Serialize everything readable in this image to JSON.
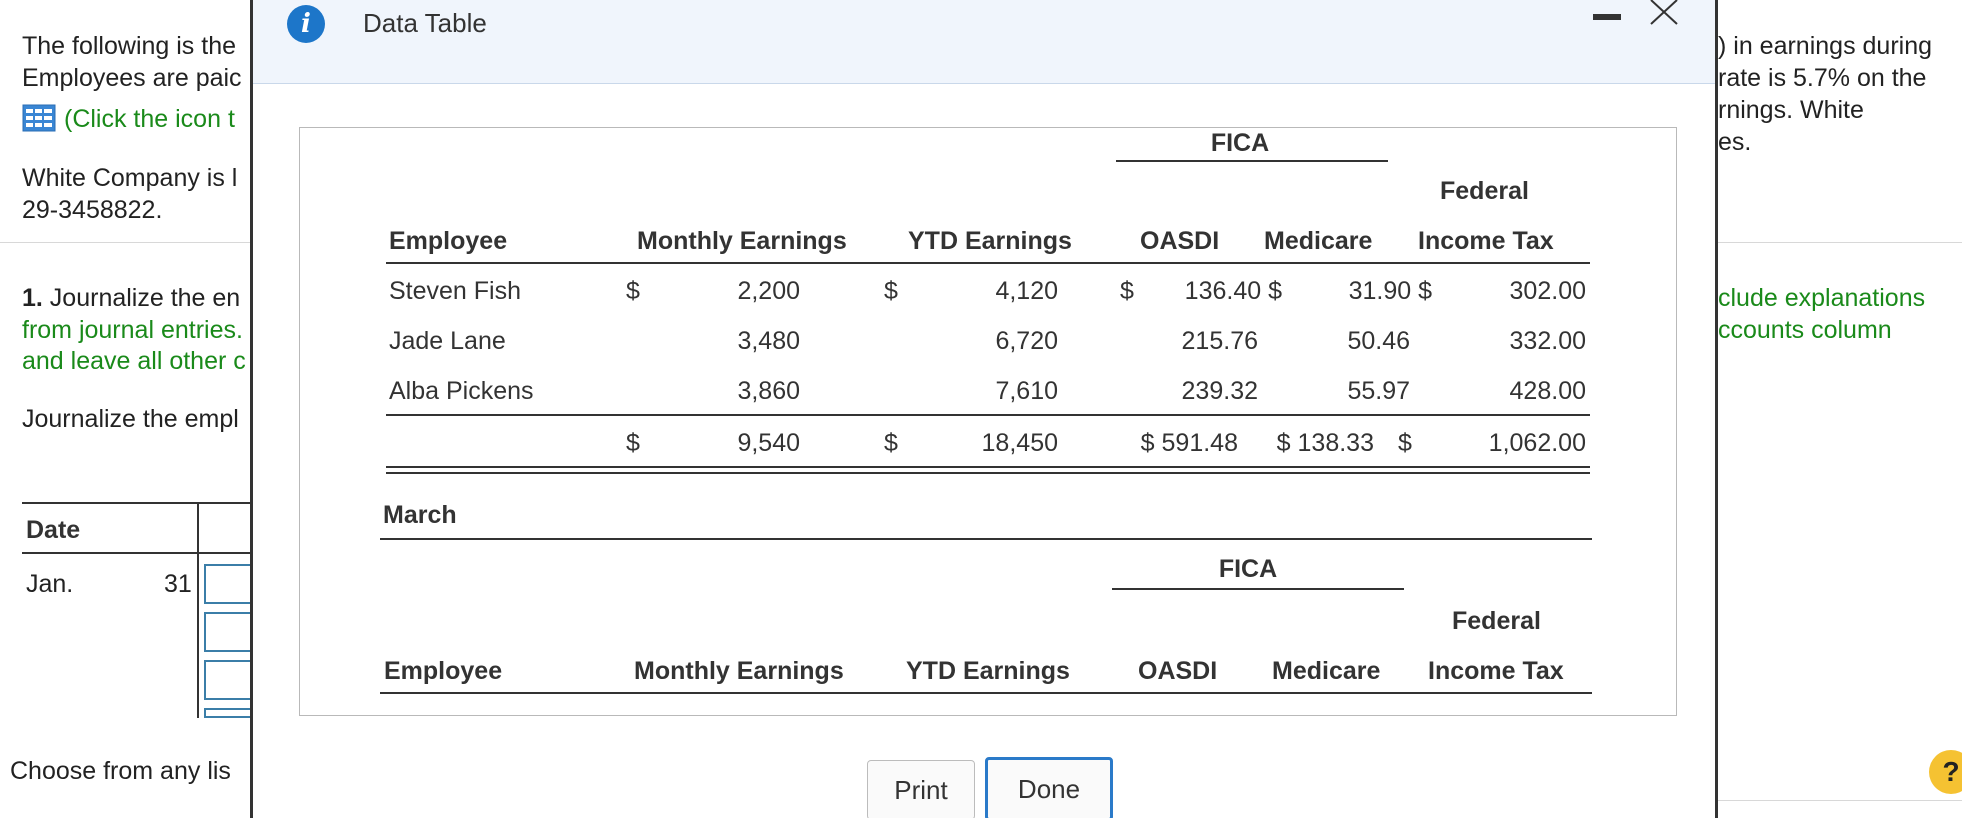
{
  "background": {
    "intro_line1": "The following is the",
    "intro_line2": "Employees are paic",
    "click_icon": "(Click the icon t",
    "company_line1": "White Company is l",
    "company_line2": "29-3458822.",
    "q1_number": "1.",
    "q1_text": " Journalize the en",
    "q1_green1": "from journal entries.",
    "q1_green2": "and leave all other c",
    "journalize": "Journalize the empl",
    "right_line1": ") in earnings during",
    "right_line2": "rate is 5.7% on the",
    "right_line3": "rnings. White",
    "right_line4": "es.",
    "right_green1": "clude explanations",
    "right_green2": "ccounts column",
    "date_header": "Date",
    "date_month": "Jan.",
    "date_day": "31",
    "choose": "Choose from any lis"
  },
  "modal": {
    "title": "Data Table",
    "print_label": "Print",
    "done_label": "Done",
    "help_label": "?"
  },
  "table": {
    "fica_header": "FICA",
    "federal_header": "Federal",
    "col_employee": "Employee",
    "col_monthly": "Monthly Earnings",
    "col_ytd": "YTD Earnings",
    "col_oasdi": "OASDI",
    "col_medicare": "Medicare",
    "col_income_tax": "Income Tax",
    "rows": [
      {
        "name": "Steven Fish",
        "monthly_cur": "$",
        "monthly": "2,200",
        "ytd_cur": "$",
        "ytd": "4,120",
        "oasdi_cur": "$",
        "oasdi": "136.40 $",
        "medicare": "31.90 $",
        "tax": "302.00"
      },
      {
        "name": "Jade Lane",
        "monthly_cur": "",
        "monthly": "3,480",
        "ytd_cur": "",
        "ytd": "6,720",
        "oasdi_cur": "",
        "oasdi": "215.76",
        "medicare": "50.46",
        "tax": "332.00"
      },
      {
        "name": "Alba Pickens",
        "monthly_cur": "",
        "monthly": "3,860",
        "ytd_cur": "",
        "ytd": "7,610",
        "oasdi_cur": "",
        "oasdi": "239.32",
        "medicare": "55.97",
        "tax": "428.00"
      }
    ],
    "total": {
      "monthly_cur": "$",
      "monthly": "9,540",
      "ytd_cur": "$",
      "ytd": "18,450",
      "oasdi": "$ 591.48",
      "medicare": "$ 138.33",
      "tax_cur": "$",
      "tax": "1,062.00"
    },
    "march_label": "March",
    "fica_header2": "FICA",
    "federal_header2": "Federal",
    "col_employee2": "Employee",
    "col_monthly2": "Monthly Earnings",
    "col_ytd2": "YTD Earnings",
    "col_oasdi2": "OASDI",
    "col_medicare2": "Medicare",
    "col_income_tax2": "Income Tax"
  },
  "colors": {
    "accent_blue": "#1d76c9",
    "green_text": "#1a8a1a",
    "help_yellow": "#f5c232"
  }
}
